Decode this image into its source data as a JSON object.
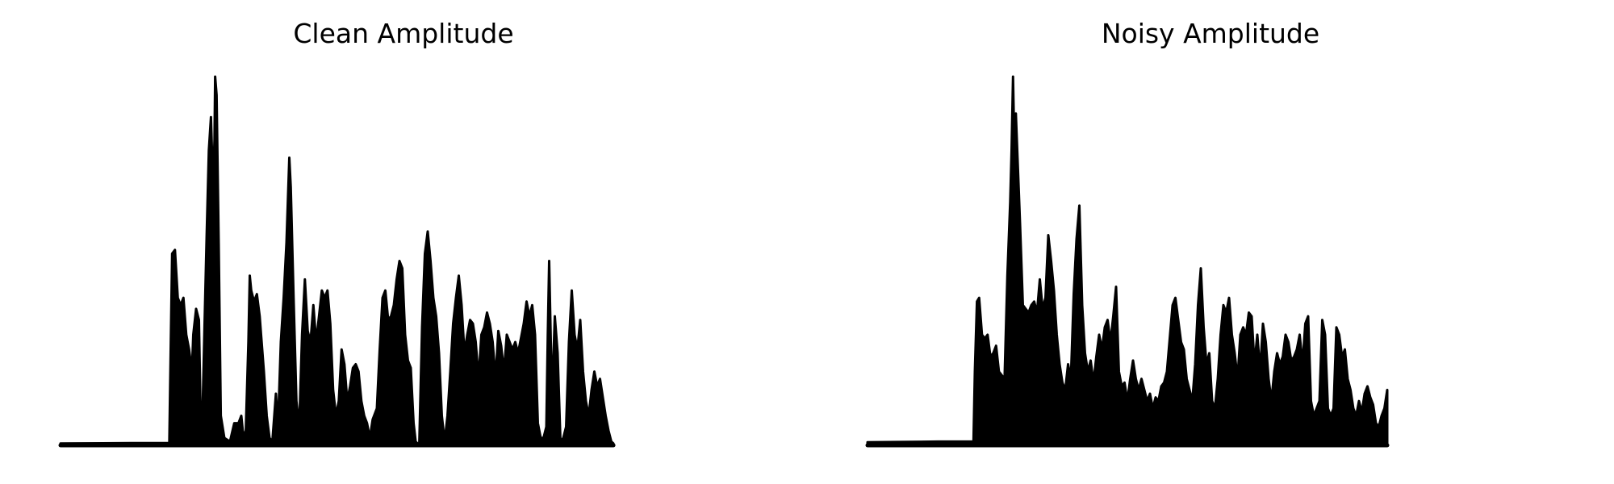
{
  "chart_data": [
    {
      "type": "area",
      "title": "Clean Amplitude",
      "axes_visible": false,
      "xlim": [
        0,
        1
      ],
      "ylim": [
        0,
        1
      ],
      "color": "#000000",
      "keypoints": [
        [
          0.0,
          0.005
        ],
        [
          0.1,
          0.006
        ],
        [
          0.154,
          0.006
        ],
        [
          0.156,
          0.26
        ],
        [
          0.158,
          0.52
        ],
        [
          0.162,
          0.53
        ],
        [
          0.166,
          0.4
        ],
        [
          0.17,
          0.38
        ],
        [
          0.174,
          0.4
        ],
        [
          0.178,
          0.3
        ],
        [
          0.182,
          0.26
        ],
        [
          0.186,
          0.2
        ],
        [
          0.188,
          0.3
        ],
        [
          0.192,
          0.37
        ],
        [
          0.196,
          0.34
        ],
        [
          0.198,
          0.12
        ],
        [
          0.201,
          0.08
        ],
        [
          0.204,
          0.33
        ],
        [
          0.207,
          0.57
        ],
        [
          0.21,
          0.8
        ],
        [
          0.213,
          0.89
        ],
        [
          0.216,
          0.7
        ],
        [
          0.218,
          0.83
        ],
        [
          0.219,
          1.0
        ],
        [
          0.221,
          0.95
        ],
        [
          0.224,
          0.55
        ],
        [
          0.227,
          0.08
        ],
        [
          0.232,
          0.02
        ],
        [
          0.24,
          0.01
        ],
        [
          0.246,
          0.06
        ],
        [
          0.252,
          0.06
        ],
        [
          0.256,
          0.08
        ],
        [
          0.258,
          0.04
        ],
        [
          0.262,
          0.02
        ],
        [
          0.266,
          0.28
        ],
        [
          0.268,
          0.46
        ],
        [
          0.27,
          0.42
        ],
        [
          0.274,
          0.39
        ],
        [
          0.278,
          0.41
        ],
        [
          0.282,
          0.35
        ],
        [
          0.284,
          0.3
        ],
        [
          0.288,
          0.2
        ],
        [
          0.292,
          0.08
        ],
        [
          0.296,
          0.02
        ],
        [
          0.3,
          0.01
        ],
        [
          0.305,
          0.14
        ],
        [
          0.308,
          0.05
        ],
        [
          0.312,
          0.28
        ],
        [
          0.316,
          0.4
        ],
        [
          0.32,
          0.55
        ],
        [
          0.324,
          0.78
        ],
        [
          0.326,
          0.7
        ],
        [
          0.33,
          0.4
        ],
        [
          0.334,
          0.12
        ],
        [
          0.338,
          0.05
        ],
        [
          0.342,
          0.3
        ],
        [
          0.346,
          0.45
        ],
        [
          0.35,
          0.31
        ],
        [
          0.354,
          0.28
        ],
        [
          0.358,
          0.38
        ],
        [
          0.362,
          0.28
        ],
        [
          0.366,
          0.35
        ],
        [
          0.37,
          0.42
        ],
        [
          0.374,
          0.4
        ],
        [
          0.378,
          0.42
        ],
        [
          0.382,
          0.33
        ],
        [
          0.386,
          0.15
        ],
        [
          0.39,
          0.08
        ],
        [
          0.394,
          0.12
        ],
        [
          0.398,
          0.26
        ],
        [
          0.402,
          0.22
        ],
        [
          0.406,
          0.12
        ],
        [
          0.41,
          0.16
        ],
        [
          0.414,
          0.21
        ],
        [
          0.418,
          0.22
        ],
        [
          0.422,
          0.2
        ],
        [
          0.426,
          0.12
        ],
        [
          0.43,
          0.08
        ],
        [
          0.434,
          0.06
        ],
        [
          0.438,
          0.02
        ],
        [
          0.442,
          0.07
        ],
        [
          0.448,
          0.1
        ],
        [
          0.452,
          0.26
        ],
        [
          0.456,
          0.4
        ],
        [
          0.46,
          0.42
        ],
        [
          0.464,
          0.34
        ],
        [
          0.468,
          0.35
        ],
        [
          0.472,
          0.38
        ],
        [
          0.476,
          0.45
        ],
        [
          0.48,
          0.5
        ],
        [
          0.484,
          0.48
        ],
        [
          0.488,
          0.3
        ],
        [
          0.492,
          0.23
        ],
        [
          0.496,
          0.21
        ],
        [
          0.5,
          0.06
        ],
        [
          0.503,
          0.01
        ],
        [
          0.508,
          0.0
        ],
        [
          0.512,
          0.32
        ],
        [
          0.516,
          0.52
        ],
        [
          0.52,
          0.58
        ],
        [
          0.524,
          0.5
        ],
        [
          0.528,
          0.4
        ],
        [
          0.532,
          0.35
        ],
        [
          0.536,
          0.25
        ],
        [
          0.54,
          0.08
        ],
        [
          0.544,
          0.01
        ],
        [
          0.548,
          0.08
        ],
        [
          0.552,
          0.2
        ],
        [
          0.556,
          0.33
        ],
        [
          0.56,
          0.4
        ],
        [
          0.564,
          0.46
        ],
        [
          0.568,
          0.38
        ],
        [
          0.572,
          0.25
        ],
        [
          0.576,
          0.3
        ],
        [
          0.58,
          0.34
        ],
        [
          0.584,
          0.33
        ],
        [
          0.588,
          0.28
        ],
        [
          0.592,
          0.18
        ],
        [
          0.596,
          0.3
        ],
        [
          0.6,
          0.32
        ],
        [
          0.604,
          0.36
        ],
        [
          0.608,
          0.33
        ],
        [
          0.612,
          0.28
        ],
        [
          0.616,
          0.18
        ],
        [
          0.62,
          0.31
        ],
        [
          0.624,
          0.27
        ],
        [
          0.628,
          0.2
        ],
        [
          0.632,
          0.3
        ],
        [
          0.636,
          0.28
        ],
        [
          0.64,
          0.26
        ],
        [
          0.644,
          0.28
        ],
        [
          0.648,
          0.25
        ],
        [
          0.652,
          0.29
        ],
        [
          0.656,
          0.33
        ],
        [
          0.66,
          0.39
        ],
        [
          0.664,
          0.35
        ],
        [
          0.668,
          0.38
        ],
        [
          0.672,
          0.3
        ],
        [
          0.676,
          0.06
        ],
        [
          0.68,
          0.02
        ],
        [
          0.684,
          0.02
        ],
        [
          0.688,
          0.05
        ],
        [
          0.69,
          0.3
        ],
        [
          0.692,
          0.5
        ],
        [
          0.696,
          0.12
        ],
        [
          0.7,
          0.35
        ],
        [
          0.704,
          0.25
        ],
        [
          0.708,
          0.01
        ],
        [
          0.712,
          0.02
        ],
        [
          0.716,
          0.05
        ],
        [
          0.72,
          0.28
        ],
        [
          0.724,
          0.42
        ],
        [
          0.728,
          0.3
        ],
        [
          0.732,
          0.26
        ],
        [
          0.736,
          0.34
        ],
        [
          0.74,
          0.2
        ],
        [
          0.744,
          0.12
        ],
        [
          0.748,
          0.08
        ],
        [
          0.752,
          0.15
        ],
        [
          0.756,
          0.2
        ],
        [
          0.76,
          0.16
        ],
        [
          0.764,
          0.18
        ],
        [
          0.768,
          0.13
        ],
        [
          0.772,
          0.08
        ],
        [
          0.776,
          0.04
        ],
        [
          0.78,
          0.01
        ],
        [
          0.783,
          0.005
        ]
      ]
    },
    {
      "type": "area",
      "title": "Noisy Amplitude",
      "axes_visible": false,
      "xlim": [
        0,
        1
      ],
      "ylim": [
        0,
        1
      ],
      "color": "#000000",
      "keypoints": [
        [
          0.0,
          0.008
        ],
        [
          0.1,
          0.01
        ],
        [
          0.15,
          0.01
        ],
        [
          0.152,
          0.2
        ],
        [
          0.155,
          0.39
        ],
        [
          0.158,
          0.4
        ],
        [
          0.162,
          0.3
        ],
        [
          0.166,
          0.29
        ],
        [
          0.17,
          0.3
        ],
        [
          0.174,
          0.24
        ],
        [
          0.178,
          0.25
        ],
        [
          0.182,
          0.27
        ],
        [
          0.186,
          0.2
        ],
        [
          0.19,
          0.19
        ],
        [
          0.194,
          0.18
        ],
        [
          0.198,
          0.46
        ],
        [
          0.202,
          0.66
        ],
        [
          0.204,
          0.8
        ],
        [
          0.206,
          1.0
        ],
        [
          0.208,
          0.8
        ],
        [
          0.21,
          0.9
        ],
        [
          0.213,
          0.75
        ],
        [
          0.216,
          0.6
        ],
        [
          0.22,
          0.38
        ],
        [
          0.224,
          0.37
        ],
        [
          0.228,
          0.36
        ],
        [
          0.232,
          0.38
        ],
        [
          0.236,
          0.39
        ],
        [
          0.24,
          0.36
        ],
        [
          0.244,
          0.45
        ],
        [
          0.248,
          0.37
        ],
        [
          0.252,
          0.4
        ],
        [
          0.256,
          0.57
        ],
        [
          0.26,
          0.5
        ],
        [
          0.264,
          0.42
        ],
        [
          0.268,
          0.3
        ],
        [
          0.272,
          0.22
        ],
        [
          0.276,
          0.17
        ],
        [
          0.28,
          0.15
        ],
        [
          0.284,
          0.22
        ],
        [
          0.288,
          0.18
        ],
        [
          0.292,
          0.41
        ],
        [
          0.296,
          0.56
        ],
        [
          0.3,
          0.65
        ],
        [
          0.304,
          0.38
        ],
        [
          0.308,
          0.25
        ],
        [
          0.312,
          0.2
        ],
        [
          0.316,
          0.23
        ],
        [
          0.32,
          0.17
        ],
        [
          0.324,
          0.24
        ],
        [
          0.328,
          0.3
        ],
        [
          0.332,
          0.26
        ],
        [
          0.336,
          0.32
        ],
        [
          0.34,
          0.34
        ],
        [
          0.344,
          0.28
        ],
        [
          0.348,
          0.35
        ],
        [
          0.352,
          0.43
        ],
        [
          0.356,
          0.2
        ],
        [
          0.36,
          0.16
        ],
        [
          0.364,
          0.17
        ],
        [
          0.368,
          0.12
        ],
        [
          0.372,
          0.18
        ],
        [
          0.376,
          0.23
        ],
        [
          0.38,
          0.18
        ],
        [
          0.384,
          0.15
        ],
        [
          0.388,
          0.18
        ],
        [
          0.392,
          0.15
        ],
        [
          0.396,
          0.12
        ],
        [
          0.4,
          0.14
        ],
        [
          0.404,
          0.1
        ],
        [
          0.408,
          0.13
        ],
        [
          0.412,
          0.12
        ],
        [
          0.416,
          0.16
        ],
        [
          0.42,
          0.17
        ],
        [
          0.424,
          0.2
        ],
        [
          0.428,
          0.29
        ],
        [
          0.432,
          0.38
        ],
        [
          0.436,
          0.4
        ],
        [
          0.44,
          0.34
        ],
        [
          0.444,
          0.28
        ],
        [
          0.448,
          0.26
        ],
        [
          0.452,
          0.18
        ],
        [
          0.456,
          0.15
        ],
        [
          0.46,
          0.12
        ],
        [
          0.464,
          0.22
        ],
        [
          0.468,
          0.38
        ],
        [
          0.472,
          0.48
        ],
        [
          0.476,
          0.32
        ],
        [
          0.48,
          0.22
        ],
        [
          0.484,
          0.25
        ],
        [
          0.488,
          0.12
        ],
        [
          0.492,
          0.1
        ],
        [
          0.496,
          0.18
        ],
        [
          0.5,
          0.3
        ],
        [
          0.504,
          0.38
        ],
        [
          0.508,
          0.36
        ],
        [
          0.512,
          0.4
        ],
        [
          0.516,
          0.3
        ],
        [
          0.52,
          0.25
        ],
        [
          0.524,
          0.18
        ],
        [
          0.528,
          0.3
        ],
        [
          0.532,
          0.32
        ],
        [
          0.536,
          0.3
        ],
        [
          0.54,
          0.36
        ],
        [
          0.544,
          0.35
        ],
        [
          0.548,
          0.22
        ],
        [
          0.552,
          0.3
        ],
        [
          0.556,
          0.2
        ],
        [
          0.56,
          0.33
        ],
        [
          0.564,
          0.28
        ],
        [
          0.568,
          0.18
        ],
        [
          0.572,
          0.12
        ],
        [
          0.576,
          0.2
        ],
        [
          0.58,
          0.25
        ],
        [
          0.584,
          0.22
        ],
        [
          0.588,
          0.24
        ],
        [
          0.592,
          0.3
        ],
        [
          0.596,
          0.28
        ],
        [
          0.6,
          0.23
        ],
        [
          0.604,
          0.24
        ],
        [
          0.608,
          0.26
        ],
        [
          0.612,
          0.3
        ],
        [
          0.616,
          0.22
        ],
        [
          0.62,
          0.33
        ],
        [
          0.624,
          0.35
        ],
        [
          0.628,
          0.12
        ],
        [
          0.632,
          0.08
        ],
        [
          0.636,
          0.1
        ],
        [
          0.64,
          0.12
        ],
        [
          0.644,
          0.34
        ],
        [
          0.648,
          0.3
        ],
        [
          0.652,
          0.1
        ],
        [
          0.656,
          0.08
        ],
        [
          0.66,
          0.1
        ],
        [
          0.664,
          0.32
        ],
        [
          0.668,
          0.3
        ],
        [
          0.672,
          0.24
        ],
        [
          0.676,
          0.26
        ],
        [
          0.68,
          0.18
        ],
        [
          0.684,
          0.15
        ],
        [
          0.688,
          0.1
        ],
        [
          0.692,
          0.08
        ],
        [
          0.696,
          0.12
        ],
        [
          0.7,
          0.09
        ],
        [
          0.704,
          0.14
        ],
        [
          0.708,
          0.16
        ],
        [
          0.712,
          0.13
        ],
        [
          0.716,
          0.11
        ],
        [
          0.72,
          0.06
        ],
        [
          0.724,
          0.05
        ],
        [
          0.728,
          0.08
        ],
        [
          0.732,
          0.1
        ],
        [
          0.736,
          0.15
        ]
      ]
    }
  ]
}
